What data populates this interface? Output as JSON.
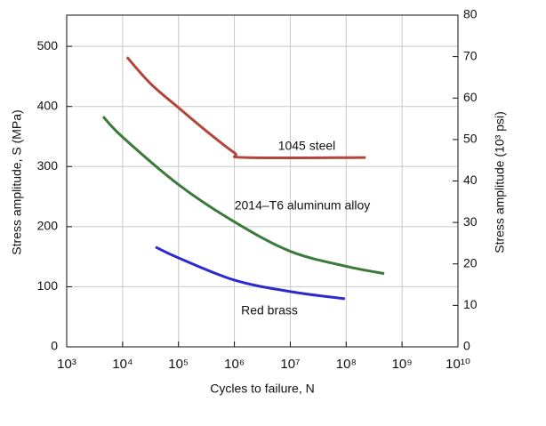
{
  "chart_data": {
    "type": "line",
    "xlabel": "Cycles to failure, N",
    "ylabel": "Stress amplitude, S (MPa)",
    "y2label": "Stress amplitude (10³ psi)",
    "xscale": "log",
    "grid": true,
    "xlim": [
      1000,
      10000000000
    ],
    "xticks": [
      {
        "value": 1000,
        "label": "10³"
      },
      {
        "value": 10000,
        "label": "10⁴"
      },
      {
        "value": 100000,
        "label": "10⁵"
      },
      {
        "value": 1000000,
        "label": "10⁶"
      },
      {
        "value": 10000000,
        "label": "10⁷"
      },
      {
        "value": 100000000,
        "label": "10⁸"
      },
      {
        "value": 1000000000,
        "label": "10⁹"
      },
      {
        "value": 10000000000,
        "label": "10¹⁰"
      }
    ],
    "ylim": [
      0,
      552
    ],
    "yticks": [
      0,
      100,
      200,
      300,
      400,
      500
    ],
    "y2lim": [
      0,
      80
    ],
    "y2ticks": [
      0,
      10,
      20,
      30,
      40,
      50,
      60,
      70,
      80
    ],
    "series": [
      {
        "name": "1045 steel",
        "color": "#b5453a",
        "x": [
          12000,
          31623,
          100000,
          316228,
          1000000,
          1600000,
          224000000
        ],
        "values": [
          482,
          438,
          398,
          359,
          323,
          315,
          315
        ]
      },
      {
        "name": "2014–T6 aluminum alloy",
        "color": "#3a7a3a",
        "x": [
          4500,
          10000,
          100000,
          1000000,
          10000000,
          100000000,
          480000000
        ],
        "values": [
          383,
          349,
          270,
          208,
          159,
          134,
          122
        ]
      },
      {
        "name": "Red brass",
        "color": "#2a2acf",
        "x": [
          39000,
          100000,
          1000000,
          10000000,
          95000000
        ],
        "values": [
          166,
          148,
          111,
          92,
          80
        ]
      }
    ]
  }
}
